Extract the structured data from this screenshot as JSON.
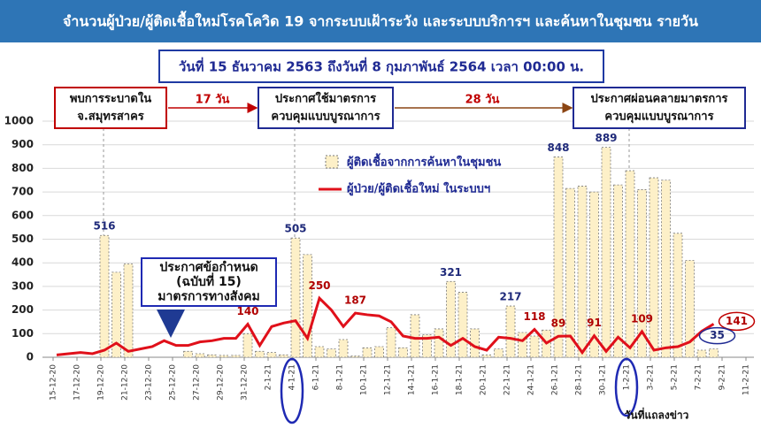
{
  "chart_data": {
    "type": "combo",
    "title": "จำนวนผู้ป่วย/ผู้ติดเชื้อใหม่โรคโควิด 19 จากระบบเฝ้าระวัง และระบบบริการฯ และค้นหาในชุมชน รายวัน",
    "subtitle": "วันที่ 15 ธันวาคม 2563 ถึงวันที่ 8 กุมภาพันธ์ 2564 เวลา 00:00 น.",
    "x_label": "วันที่แถลงข่าว",
    "categories": [
      "15-12-20",
      null,
      "17-12-20",
      null,
      "19-12-20",
      null,
      "21-12-20",
      null,
      "23-12-20",
      null,
      "25-12-20",
      null,
      "27-12-20",
      null,
      "29-12-20",
      null,
      "31-12-20",
      null,
      "2-1-21",
      null,
      "4-1-21",
      null,
      "6-1-21",
      null,
      "8-1-21",
      null,
      "10-1-21",
      null,
      "12-1-21",
      null,
      "14-1-21",
      null,
      "16-1-21",
      null,
      "18-1-21",
      null,
      "20-1-21",
      null,
      "22-1-21",
      null,
      "24-1-21",
      null,
      "26-1-21",
      null,
      "28-1-21",
      null,
      "30-1-21",
      null,
      "1-2-21",
      null,
      "3-2-21",
      null,
      "5-2-21",
      null,
      "7-2-21",
      null,
      "9-2-21",
      null,
      "11-2-21"
    ],
    "series": [
      {
        "name": "ผู้ติดเชื้อจากการค้นหาในชุมชน",
        "type": "bar",
        "color": "#fdf0c8",
        "values": [
          0,
          0,
          0,
          0,
          516,
          360,
          395,
          0,
          0,
          0,
          0,
          25,
          15,
          10,
          8,
          8,
          100,
          25,
          20,
          10,
          505,
          435,
          45,
          35,
          75,
          5,
          40,
          45,
          125,
          40,
          180,
          95,
          120,
          321,
          275,
          120,
          10,
          35,
          217,
          105,
          90,
          115,
          848,
          715,
          725,
          700,
          889,
          730,
          790,
          710,
          760,
          750,
          525,
          410,
          30,
          35,
          null,
          null,
          null
        ],
        "value_labels": [
          null,
          null,
          null,
          null,
          "516",
          null,
          null,
          null,
          null,
          null,
          null,
          null,
          null,
          null,
          null,
          null,
          null,
          null,
          null,
          null,
          "505",
          null,
          null,
          null,
          null,
          null,
          null,
          null,
          null,
          null,
          null,
          null,
          null,
          "321",
          null,
          null,
          null,
          null,
          "217",
          null,
          null,
          null,
          "848",
          null,
          null,
          null,
          "889",
          null,
          null,
          null,
          null,
          null,
          null,
          null,
          null,
          "35",
          null,
          null,
          null
        ]
      },
      {
        "name": "ผู้ป่วย/ผู้ติดเชื้อใหม่ ในระบบฯ",
        "type": "line",
        "color": "#e0101a",
        "values": [
          10,
          15,
          20,
          15,
          30,
          60,
          25,
          35,
          45,
          70,
          50,
          50,
          65,
          70,
          80,
          80,
          140,
          50,
          130,
          145,
          155,
          80,
          250,
          200,
          130,
          187,
          180,
          175,
          150,
          90,
          80,
          80,
          85,
          50,
          80,
          45,
          30,
          85,
          80,
          70,
          118,
          60,
          89,
          90,
          20,
          91,
          25,
          85,
          40,
          109,
          30,
          40,
          45,
          65,
          110,
          141,
          null,
          null,
          null
        ],
        "value_labels": [
          null,
          null,
          null,
          null,
          null,
          null,
          null,
          null,
          null,
          null,
          null,
          null,
          null,
          null,
          null,
          null,
          "140",
          null,
          null,
          null,
          null,
          null,
          "250",
          null,
          null,
          "187",
          null,
          null,
          null,
          null,
          null,
          null,
          null,
          null,
          null,
          null,
          null,
          null,
          null,
          null,
          "118",
          null,
          "89",
          null,
          null,
          "91",
          null,
          null,
          null,
          "109",
          null,
          null,
          null,
          null,
          null,
          "141",
          null,
          null,
          null
        ]
      }
    ],
    "ylim": [
      0,
      1000
    ],
    "yticks": [
      0,
      100,
      200,
      300,
      400,
      500,
      600,
      700,
      800,
      900,
      1000
    ],
    "grid": true,
    "annotations": [
      {
        "lines": [
          "พบการระบาดใน",
          "จ.สมุทรสาคร"
        ]
      },
      {
        "lines": [
          "ประกาศใช้มาตรการ",
          "ควบคุมแบบบูรณาการ"
        ]
      },
      {
        "lines": [
          "ประกาศผ่อนคลายมาตรการ",
          "ควบคุมแบบบูรณาการ"
        ]
      },
      {
        "lines": [
          "ประกาศข้อกำหนด",
          "(ฉบับที่ 15)",
          "มาตรการทางสังคม"
        ]
      },
      {
        "text": "17 วัน"
      },
      {
        "text": "28 วัน"
      }
    ]
  }
}
